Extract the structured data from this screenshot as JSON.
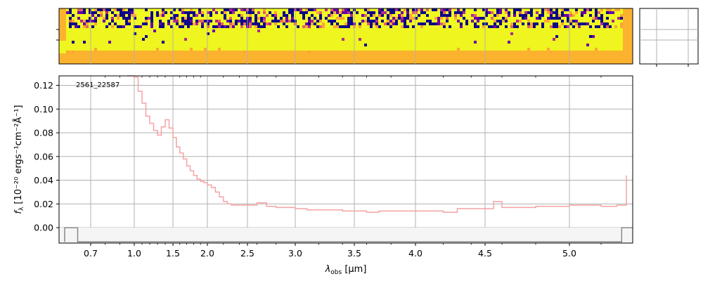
{
  "chart_data": {
    "type": "line",
    "object_label": "2561_22587",
    "xlabel_symbol": "λ",
    "xlabel_subscript": "obs",
    "xlabel_unit": " [μm]",
    "ylabel_symbol": "f",
    "ylabel_subscript": "λ",
    "ylabel_unit": " [10⁻²⁰ ergs⁻¹cm⁻²Å⁻¹]",
    "x_scale": "wavelength, slightly compressed toward long wavelengths",
    "xlim": [
      0.6,
      5.4
    ],
    "ylim": [
      -0.013,
      0.128
    ],
    "x_ticks": [
      0.7,
      1.0,
      1.5,
      2.0,
      2.5,
      3.0,
      3.5,
      4.0,
      4.5,
      5.0
    ],
    "x_tick_labels": [
      "0.7",
      "1.0",
      "1.5",
      "2.0",
      "2.5",
      "3.0",
      "3.5",
      "4.0",
      "4.5",
      "5.0"
    ],
    "x_minor_ticks": [
      0.8,
      0.9,
      1.1,
      1.2,
      1.3,
      1.4,
      1.6,
      1.7,
      1.8,
      1.9,
      2.2,
      2.4,
      2.6,
      2.8,
      3.2,
      3.4,
      3.6,
      3.8,
      4.2,
      4.4,
      4.6,
      4.8,
      5.2
    ],
    "y_ticks": [
      0.0,
      0.02,
      0.04,
      0.06,
      0.08,
      0.1,
      0.12
    ],
    "y_tick_labels": [
      "0.00",
      "0.02",
      "0.04",
      "0.06",
      "0.08",
      "0.10",
      "0.12"
    ],
    "grid": true,
    "spectrum_color": "#f5a3a3",
    "spectrum": [
      [
        0.95,
        0.135
      ],
      [
        1.0,
        0.127
      ],
      [
        1.05,
        0.115
      ],
      [
        1.1,
        0.105
      ],
      [
        1.15,
        0.094
      ],
      [
        1.2,
        0.088
      ],
      [
        1.25,
        0.082
      ],
      [
        1.3,
        0.078
      ],
      [
        1.35,
        0.085
      ],
      [
        1.4,
        0.091
      ],
      [
        1.45,
        0.084
      ],
      [
        1.5,
        0.076
      ],
      [
        1.55,
        0.068
      ],
      [
        1.6,
        0.063
      ],
      [
        1.65,
        0.058
      ],
      [
        1.7,
        0.052
      ],
      [
        1.75,
        0.048
      ],
      [
        1.8,
        0.044
      ],
      [
        1.85,
        0.041
      ],
      [
        1.9,
        0.039
      ],
      [
        1.95,
        0.038
      ],
      [
        2.0,
        0.036
      ],
      [
        2.05,
        0.034
      ],
      [
        2.1,
        0.03
      ],
      [
        2.15,
        0.026
      ],
      [
        2.2,
        0.022
      ],
      [
        2.25,
        0.02
      ],
      [
        2.3,
        0.019
      ],
      [
        2.4,
        0.019
      ],
      [
        2.5,
        0.019
      ],
      [
        2.6,
        0.021
      ],
      [
        2.7,
        0.018
      ],
      [
        2.8,
        0.017
      ],
      [
        2.9,
        0.017
      ],
      [
        3.0,
        0.016
      ],
      [
        3.1,
        0.015
      ],
      [
        3.2,
        0.015
      ],
      [
        3.3,
        0.015
      ],
      [
        3.4,
        0.014
      ],
      [
        3.5,
        0.014
      ],
      [
        3.6,
        0.013
      ],
      [
        3.7,
        0.014
      ],
      [
        3.8,
        0.014
      ],
      [
        3.9,
        0.014
      ],
      [
        4.0,
        0.014
      ],
      [
        4.1,
        0.014
      ],
      [
        4.2,
        0.013
      ],
      [
        4.3,
        0.016
      ],
      [
        4.4,
        0.016
      ],
      [
        4.5,
        0.016
      ],
      [
        4.55,
        0.022
      ],
      [
        4.6,
        0.017
      ],
      [
        4.7,
        0.017
      ],
      [
        4.8,
        0.018
      ],
      [
        4.9,
        0.018
      ],
      [
        5.0,
        0.019
      ],
      [
        5.1,
        0.019
      ],
      [
        5.2,
        0.018
      ],
      [
        5.3,
        0.019
      ],
      [
        5.35,
        0.019
      ],
      [
        5.36,
        0.044
      ]
    ],
    "error_color": "#888888",
    "error_band": [
      [
        0.6,
        -0.012
      ],
      [
        0.6,
        0.0
      ],
      [
        0.65,
        0.0
      ],
      [
        0.65,
        -0.012
      ],
      [
        5.33,
        -0.012
      ],
      [
        5.33,
        0.0
      ],
      [
        5.4,
        0.0
      ]
    ]
  },
  "image_panel": {
    "colormap": [
      "#0d0887",
      "#6a00a8",
      "#b12a90",
      "#e16462",
      "#fca636",
      "#f0f921"
    ],
    "background": "#fbb22e",
    "bright_band_color": "#eef51f"
  },
  "side_panel": {
    "grid_color": "#b0b0b0"
  }
}
